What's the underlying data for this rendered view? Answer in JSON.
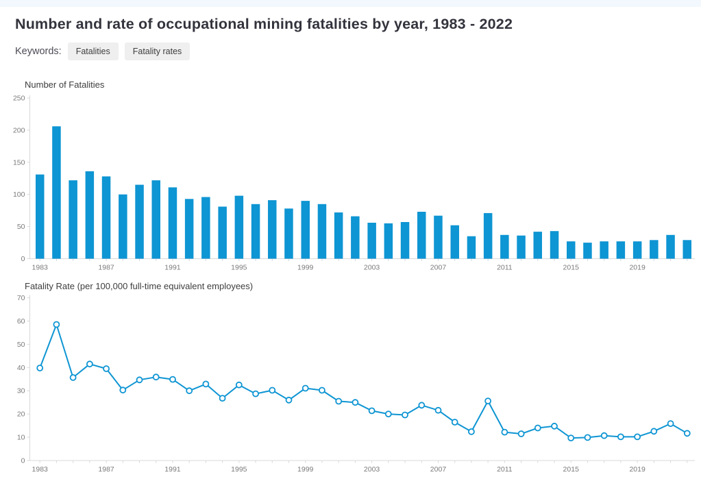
{
  "header": {
    "title": "Number and rate of occupational mining fatalities by year, 1983 - 2022",
    "keywords_label": "Keywords:",
    "keywords": [
      "Fatalities",
      "Fatality rates"
    ]
  },
  "colors": {
    "accent_blue": "#0e95d3",
    "top_strip": "#f2f8fd",
    "axis_line": "#d8d8d8",
    "tick_label_text": "#7a7a7a",
    "chart_title_text": "#3d3d3d",
    "marker_fill": "#ffffff"
  },
  "chart_data": [
    {
      "type": "bar",
      "title": "Number of Fatalities",
      "ylabel": "Number of Fatalities",
      "ylim": [
        0,
        250
      ],
      "yticks": [
        0,
        50,
        100,
        150,
        200,
        250
      ],
      "grid": false,
      "legend": "none",
      "xtick_labels": [
        "1983",
        "1987",
        "1991",
        "1995",
        "1999",
        "2003",
        "2007",
        "2011",
        "2015",
        "2019"
      ],
      "categories": [
        1983,
        1984,
        1985,
        1986,
        1987,
        1988,
        1989,
        1990,
        1991,
        1992,
        1993,
        1994,
        1995,
        1996,
        1997,
        1998,
        1999,
        2000,
        2001,
        2002,
        2003,
        2004,
        2005,
        2006,
        2007,
        2008,
        2009,
        2010,
        2011,
        2012,
        2013,
        2014,
        2015,
        2016,
        2017,
        2018,
        2019,
        2020,
        2021,
        2022
      ],
      "values": [
        131,
        206,
        122,
        136,
        128,
        100,
        115,
        122,
        111,
        93,
        96,
        81,
        98,
        85,
        91,
        78,
        90,
        85,
        72,
        66,
        56,
        55,
        57,
        73,
        67,
        52,
        35,
        71,
        37,
        36,
        42,
        43,
        27,
        25,
        27,
        27,
        27,
        29,
        37,
        29
      ]
    },
    {
      "type": "line",
      "title": "Fatality Rate (per 100,000 full-time equivalent employees)",
      "ylabel": "Fatality Rate (per 100,000 full-time equivalent employees)",
      "ylim": [
        0,
        70
      ],
      "yticks": [
        0,
        10,
        20,
        30,
        40,
        50,
        60,
        70
      ],
      "grid": false,
      "legend": "none",
      "marker": "open-circle",
      "xtick_labels": [
        "1983",
        "1987",
        "1991",
        "1995",
        "1999",
        "2003",
        "2007",
        "2011",
        "2015",
        "2019"
      ],
      "categories": [
        1983,
        1984,
        1985,
        1986,
        1987,
        1988,
        1989,
        1990,
        1991,
        1992,
        1993,
        1994,
        1995,
        1996,
        1997,
        1998,
        1999,
        2000,
        2001,
        2002,
        2003,
        2004,
        2005,
        2006,
        2007,
        2008,
        2009,
        2010,
        2011,
        2012,
        2013,
        2014,
        2015,
        2016,
        2017,
        2018,
        2019,
        2020,
        2021,
        2022
      ],
      "values": [
        39.8,
        58.5,
        35.7,
        41.5,
        39.5,
        30.3,
        34.7,
        35.9,
        34.9,
        30.0,
        32.9,
        26.8,
        32.5,
        28.7,
        30.2,
        26.0,
        31.1,
        30.2,
        25.5,
        25.0,
        21.4,
        20.0,
        19.6,
        23.8,
        21.6,
        16.5,
        12.4,
        25.6,
        12.2,
        11.5,
        14.0,
        14.8,
        9.7,
        9.9,
        10.7,
        10.2,
        10.2,
        12.6,
        15.9,
        11.7
      ]
    }
  ]
}
